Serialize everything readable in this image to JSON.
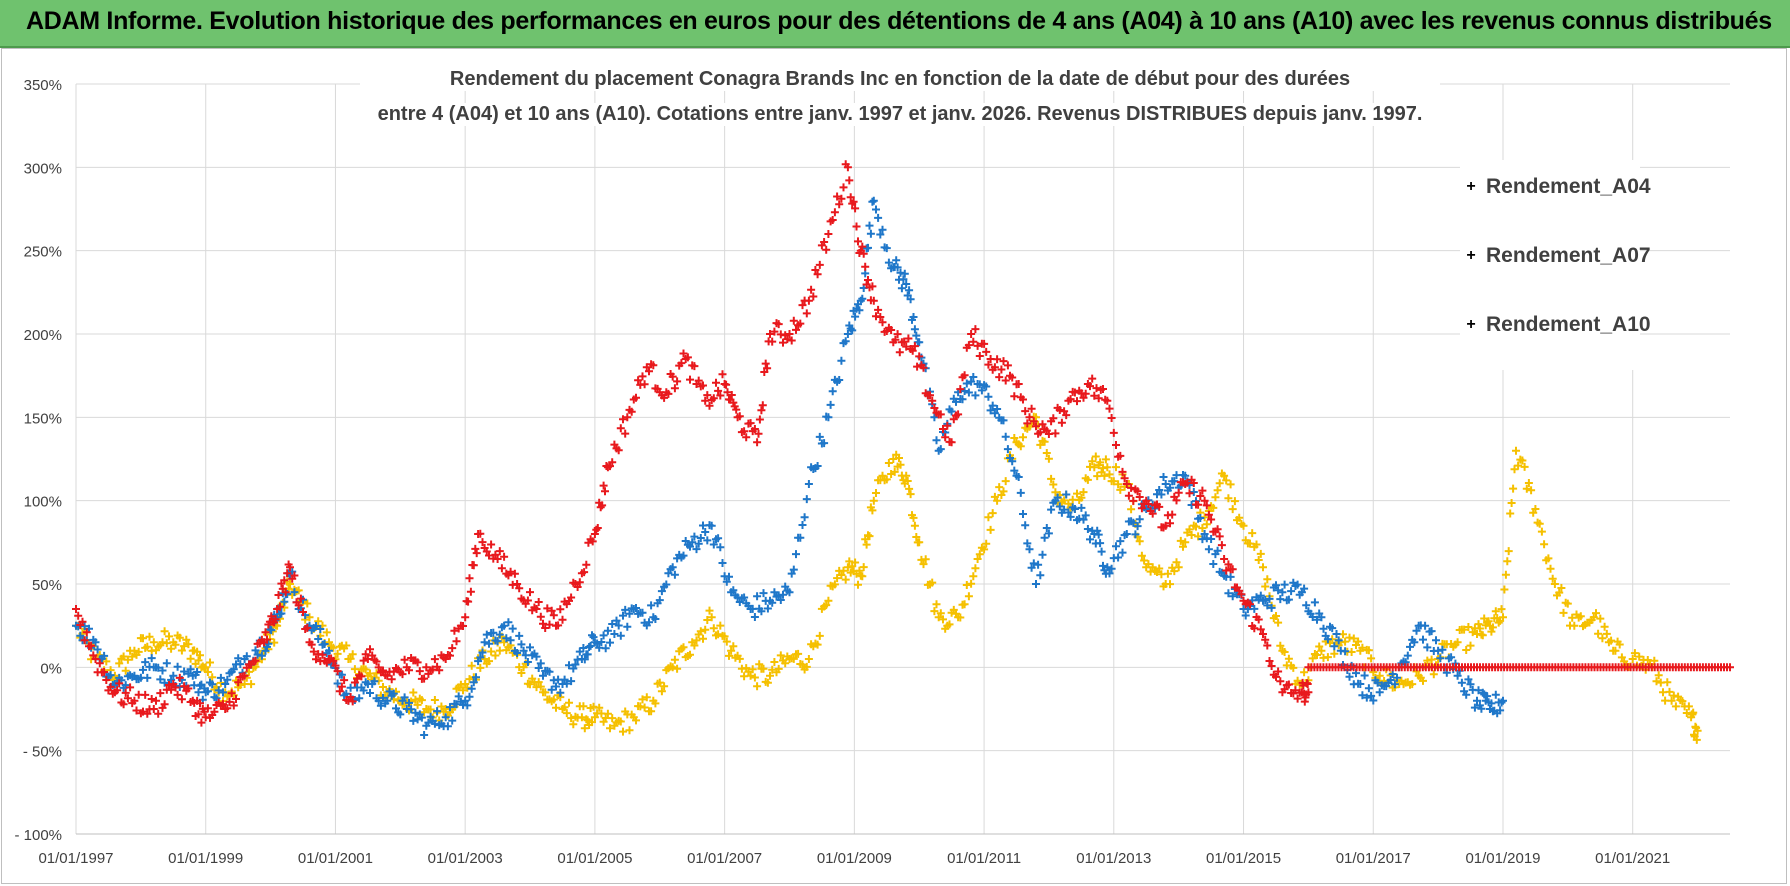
{
  "banner": {
    "title": "ADAM Informe. Evolution historique des performances en euros pour des détentions de 4 ans (A04) à 10 ans (A10) avec les revenus connus distribués"
  },
  "chart_data": {
    "type": "scatter",
    "title_line1": "Rendement du placement Conagra Brands Inc en fonction de la date de début pour des durées",
    "title_line2": "entre 4 (A04) et 10 ans (A10).  Cotations entre janv. 1997 et janv. 2026. Revenus DISTRIBUES  depuis janv. 1997.",
    "xlabel": "",
    "ylabel": "",
    "xlim": [
      1997.0,
      2022.5
    ],
    "ylim": [
      -100,
      350
    ],
    "x_ticks": [
      1997,
      1999,
      2001,
      2003,
      2005,
      2007,
      2009,
      2011,
      2013,
      2015,
      2017,
      2019,
      2021
    ],
    "x_tick_labels": [
      "01/01/1997",
      "01/01/1999",
      "01/01/2001",
      "01/01/2003",
      "01/01/2005",
      "01/01/2007",
      "01/01/2009",
      "01/01/2011",
      "01/01/2013",
      "01/01/2015",
      "01/01/2017",
      "01/01/2019",
      "01/01/2021"
    ],
    "y_ticks": [
      -100,
      -50,
      0,
      50,
      100,
      150,
      200,
      250,
      300,
      350
    ],
    "y_tick_labels": [
      "- 100%",
      "- 50%",
      "0%",
      "50%",
      "100%",
      "150%",
      "200%",
      "250%",
      "300%",
      "350%"
    ],
    "grid": true,
    "legend_position": "top-right",
    "marker": "+",
    "series": [
      {
        "name": "Rendement_A04",
        "color": "#f5c000",
        "x": [
          1997.0,
          1997.3,
          1997.6,
          1997.9,
          1998.2,
          1998.5,
          1998.8,
          1999.0,
          1999.3,
          1999.6,
          1999.9,
          2000.1,
          2000.3,
          2000.6,
          2000.9,
          2001.2,
          2001.5,
          2001.8,
          2002.1,
          2002.4,
          2002.7,
          2003.0,
          2003.3,
          2003.6,
          2003.9,
          2004.2,
          2004.5,
          2004.8,
          2005.0,
          2005.3,
          2005.6,
          2005.9,
          2006.2,
          2006.5,
          2006.8,
          2007.1,
          2007.4,
          2007.7,
          2008.0,
          2008.3,
          2008.6,
          2008.9,
          2009.1,
          2009.3,
          2009.6,
          2009.8,
          2010.0,
          2010.3,
          2010.6,
          2010.9,
          2011.2,
          2011.5,
          2011.8,
          2012.1,
          2012.4,
          2012.7,
          2012.9,
          2013.2,
          2013.5,
          2013.8,
          2014.1,
          2014.4,
          2014.7,
          2015.0,
          2015.3,
          2015.6,
          2015.9,
          2016.2,
          2016.5,
          2016.8,
          2017.1,
          2017.4,
          2017.7,
          2018.0,
          2018.3,
          2018.6,
          2018.8,
          2019.0,
          2019.2,
          2019.5,
          2019.8,
          2020.1,
          2020.4,
          2020.7,
          2021.0,
          2021.3,
          2021.6,
          2021.9,
          2022.0
        ],
        "values": [
          25,
          5,
          -5,
          10,
          15,
          15,
          10,
          0,
          -15,
          -10,
          10,
          25,
          50,
          30,
          15,
          5,
          -5,
          -15,
          -20,
          -25,
          -25,
          -10,
          5,
          15,
          0,
          -15,
          -25,
          -30,
          -30,
          -35,
          -30,
          -20,
          0,
          15,
          30,
          10,
          -5,
          -5,
          5,
          5,
          40,
          60,
          55,
          100,
          125,
          115,
          75,
          30,
          30,
          65,
          100,
          135,
          150,
          105,
          95,
          120,
          120,
          110,
          60,
          50,
          75,
          90,
          115,
          85,
          60,
          10,
          -10,
          10,
          15,
          10,
          -5,
          -10,
          -5,
          5,
          15,
          20,
          25,
          30,
          130,
          95,
          50,
          25,
          30,
          10,
          5,
          0,
          -20,
          -30,
          -38
        ]
      },
      {
        "name": "Rendement_A07",
        "color": "#1f77c9",
        "x": [
          1997.0,
          1997.3,
          1997.6,
          1997.9,
          1998.2,
          1998.5,
          1998.8,
          1999.0,
          1999.3,
          1999.6,
          1999.9,
          2000.1,
          2000.3,
          2000.6,
          2000.9,
          2001.2,
          2001.5,
          2001.8,
          2002.1,
          2002.4,
          2002.7,
          2003.0,
          2003.3,
          2003.6,
          2003.9,
          2004.2,
          2004.5,
          2004.8,
          2005.0,
          2005.3,
          2005.6,
          2005.9,
          2006.2,
          2006.5,
          2006.8,
          2007.1,
          2007.4,
          2007.7,
          2008.0,
          2008.3,
          2008.6,
          2008.9,
          2009.1,
          2009.3,
          2009.6,
          2009.8,
          2010.0,
          2010.3,
          2010.6,
          2010.9,
          2011.2,
          2011.5,
          2011.8,
          2012.1,
          2012.4,
          2012.7,
          2012.9,
          2013.2,
          2013.5,
          2013.8,
          2014.1,
          2014.4,
          2014.7,
          2015.0,
          2015.3,
          2015.6,
          2015.9,
          2016.2,
          2016.5,
          2016.8,
          2017.1,
          2017.4,
          2017.7,
          2018.0,
          2018.3,
          2018.6,
          2018.8,
          2019.0
        ],
        "values": [
          25,
          15,
          -10,
          -5,
          0,
          -5,
          -5,
          -15,
          -10,
          5,
          15,
          30,
          55,
          25,
          10,
          -20,
          -10,
          -20,
          -25,
          -35,
          -30,
          -20,
          15,
          25,
          10,
          -5,
          -10,
          5,
          15,
          20,
          35,
          30,
          60,
          75,
          85,
          45,
          35,
          40,
          45,
          110,
          150,
          200,
          220,
          280,
          240,
          230,
          195,
          130,
          165,
          170,
          155,
          115,
          50,
          100,
          95,
          80,
          60,
          80,
          95,
          110,
          115,
          80,
          55,
          35,
          40,
          45,
          45,
          30,
          10,
          -10,
          -15,
          0,
          25,
          10,
          -5,
          -20,
          -25,
          -20
        ]
      },
      {
        "name": "Rendement_A10",
        "color": "#e8191d",
        "x": [
          1997.0,
          1997.3,
          1997.6,
          1997.9,
          1998.2,
          1998.5,
          1998.8,
          1999.0,
          1999.3,
          1999.6,
          1999.9,
          2000.1,
          2000.3,
          2000.6,
          2000.9,
          2001.2,
          2001.5,
          2001.8,
          2002.1,
          2002.4,
          2002.7,
          2003.0,
          2003.2,
          2003.5,
          2003.8,
          2004.1,
          2004.4,
          2004.7,
          2005.0,
          2005.2,
          2005.5,
          2005.8,
          2006.1,
          2006.4,
          2006.7,
          2007.0,
          2007.2,
          2007.5,
          2007.7,
          2008.0,
          2008.3,
          2008.6,
          2008.9,
          2009.1,
          2009.3,
          2009.6,
          2009.9,
          2010.2,
          2010.5,
          2010.8,
          2011.1,
          2011.4,
          2011.7,
          2012.0,
          2012.3,
          2012.6,
          2012.9,
          2013.2,
          2013.5,
          2013.8,
          2014.1,
          2014.4,
          2014.7,
          2015.0,
          2015.3,
          2015.6,
          2015.9,
          2016.0
        ],
        "values": [
          35,
          5,
          -15,
          -20,
          -25,
          -10,
          -20,
          -30,
          -25,
          -5,
          15,
          35,
          60,
          15,
          5,
          -20,
          5,
          -5,
          0,
          0,
          5,
          30,
          80,
          65,
          50,
          35,
          25,
          50,
          80,
          120,
          150,
          180,
          165,
          185,
          160,
          170,
          150,
          135,
          200,
          200,
          220,
          260,
          300,
          250,
          220,
          195,
          190,
          160,
          135,
          200,
          185,
          175,
          150,
          140,
          160,
          170,
          160,
          110,
          100,
          85,
          110,
          100,
          65,
          40,
          20,
          -15,
          -15,
          -15
        ]
      },
      {
        "name": "Rendement_A10_zero_segment",
        "legend": false,
        "color": "#e8191d",
        "x": [
          2016.0,
          2022.5
        ],
        "values": [
          0,
          0
        ]
      }
    ]
  },
  "legend": {
    "items": [
      {
        "label": "Rendement_A04",
        "color": "#f5c000"
      },
      {
        "label": "Rendement_A07",
        "color": "#1f77c9"
      },
      {
        "label": "Rendement_A10",
        "color": "#e8191d"
      }
    ]
  }
}
